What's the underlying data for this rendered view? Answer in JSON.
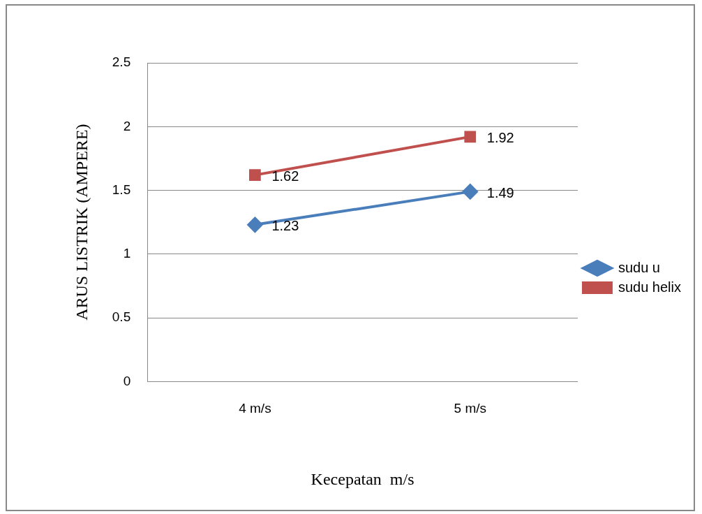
{
  "chart_data": {
    "type": "line",
    "xlabel": "Kecepatan  m/s",
    "ylabel": "ARUS LISTRIK (AMPERE)",
    "categories": [
      "4 m/s",
      "5 m/s"
    ],
    "series": [
      {
        "name": "sudu u",
        "color": "#4a7ebb",
        "marker": "diamond",
        "values": [
          1.23,
          1.49
        ]
      },
      {
        "name": "sudu helix",
        "color": "#c0504d",
        "marker": "square",
        "values": [
          1.62,
          1.92
        ]
      }
    ],
    "ylim": [
      0,
      2.5
    ],
    "yticks": [
      0,
      0.5,
      1,
      1.5,
      2,
      2.5
    ],
    "grid": "y",
    "legend": "right",
    "data_labels": true
  }
}
